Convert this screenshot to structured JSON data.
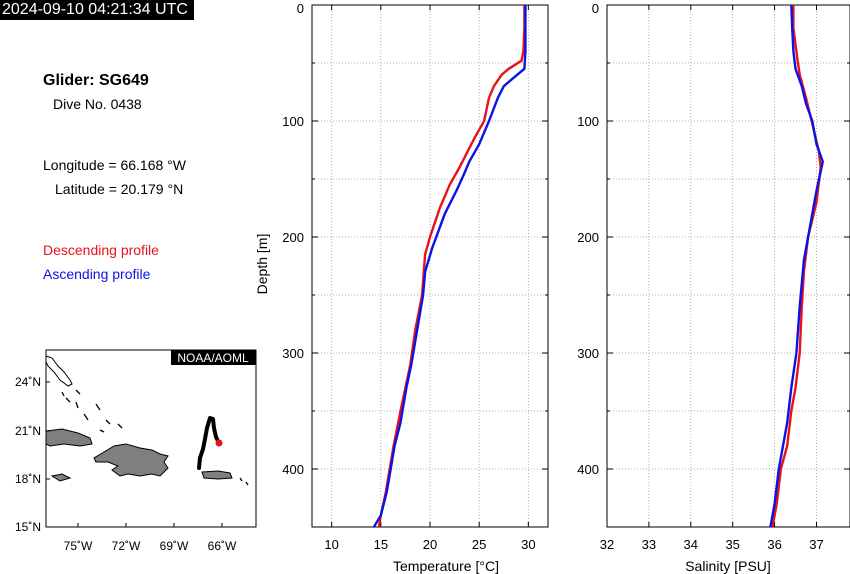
{
  "header": {
    "timestamp": "2024-09-10 04:21:34 UTC"
  },
  "info": {
    "glider": "Glider: SG649",
    "dive": "Dive No. 0438",
    "longitude": "Longitude = 66.168 °W",
    "latitude": "Latitude = 20.179 °N",
    "legend_descending": "Descending profile",
    "legend_ascending": "Ascending profile"
  },
  "colors": {
    "descending": "#e8121a",
    "ascending": "#0b12e6",
    "land": "#7f7f7f",
    "track": "#000000",
    "position": "#e8121a"
  },
  "map": {
    "credit": "NOAA/AOML",
    "lat_ticks": [
      "24˚N",
      "21˚N",
      "18˚N",
      "15˚N"
    ],
    "lon_ticks": [
      "75˚W",
      "72˚W",
      "69˚W",
      "66˚W"
    ]
  },
  "chart_data": [
    {
      "type": "line",
      "xlabel": "Temperature [°C]",
      "ylabel": "Depth [m]",
      "xlim": [
        8,
        32
      ],
      "ylim": [
        0,
        450
      ],
      "y_inverted": true,
      "x_ticks": [
        10,
        15,
        20,
        25,
        30
      ],
      "y_ticks": [
        0,
        100,
        200,
        300,
        400
      ],
      "grid": true,
      "series": [
        {
          "name": "Descending profile",
          "x": [
            29.6,
            29.6,
            29.5,
            29.3,
            28.0,
            27.3,
            26.5,
            26.0,
            25.5,
            24.5,
            23.6,
            23.0,
            22.0,
            21.0,
            20.0,
            19.5,
            19.2,
            18.5,
            18.0,
            17.5,
            17.0,
            16.3,
            15.9,
            15.5,
            15.0,
            14.8
          ],
          "y": [
            0,
            20,
            40,
            48,
            55,
            60,
            70,
            80,
            100,
            115,
            130,
            140,
            155,
            175,
            200,
            215,
            250,
            280,
            310,
            330,
            350,
            380,
            400,
            420,
            440,
            450
          ]
        },
        {
          "name": "Ascending profile",
          "x": [
            29.7,
            29.7,
            29.7,
            29.6,
            28.6,
            27.5,
            26.9,
            26.0,
            25.0,
            24.0,
            23.5,
            22.7,
            21.5,
            20.2,
            19.5,
            19.3,
            18.7,
            18.1,
            17.6,
            17.0,
            16.4,
            16.0,
            15.6,
            15.0,
            14.3
          ],
          "y": [
            0,
            20,
            40,
            55,
            62,
            70,
            80,
            100,
            120,
            135,
            145,
            160,
            180,
            210,
            230,
            250,
            280,
            310,
            330,
            360,
            380,
            400,
            420,
            440,
            450
          ]
        }
      ]
    },
    {
      "type": "line",
      "xlabel": "Salinity [PSU]",
      "ylabel": "",
      "xlim": [
        32,
        37.8
      ],
      "ylim": [
        0,
        450
      ],
      "y_inverted": true,
      "x_ticks": [
        32,
        33,
        34,
        35,
        36,
        37
      ],
      "y_ticks": [
        0,
        100,
        200,
        300,
        400
      ],
      "grid": true,
      "series": [
        {
          "name": "Descending profile",
          "x": [
            36.45,
            36.45,
            36.55,
            36.6,
            36.75,
            36.85,
            36.95,
            37.05,
            37.1,
            37.0,
            36.8,
            36.7,
            36.65,
            36.6,
            36.5,
            36.4,
            36.3,
            36.15,
            36.05,
            35.95
          ],
          "y": [
            0,
            20,
            48,
            60,
            80,
            95,
            110,
            125,
            140,
            170,
            200,
            230,
            260,
            300,
            330,
            350,
            380,
            400,
            430,
            450
          ]
        },
        {
          "name": "Ascending profile",
          "x": [
            36.4,
            36.42,
            36.45,
            36.5,
            36.65,
            36.75,
            36.9,
            37.0,
            37.15,
            37.0,
            36.85,
            36.7,
            36.6,
            36.52,
            36.4,
            36.3,
            36.1,
            36.0,
            35.9
          ],
          "y": [
            0,
            20,
            40,
            55,
            70,
            85,
            100,
            120,
            135,
            160,
            190,
            220,
            260,
            300,
            330,
            360,
            400,
            430,
            450
          ]
        }
      ]
    }
  ]
}
